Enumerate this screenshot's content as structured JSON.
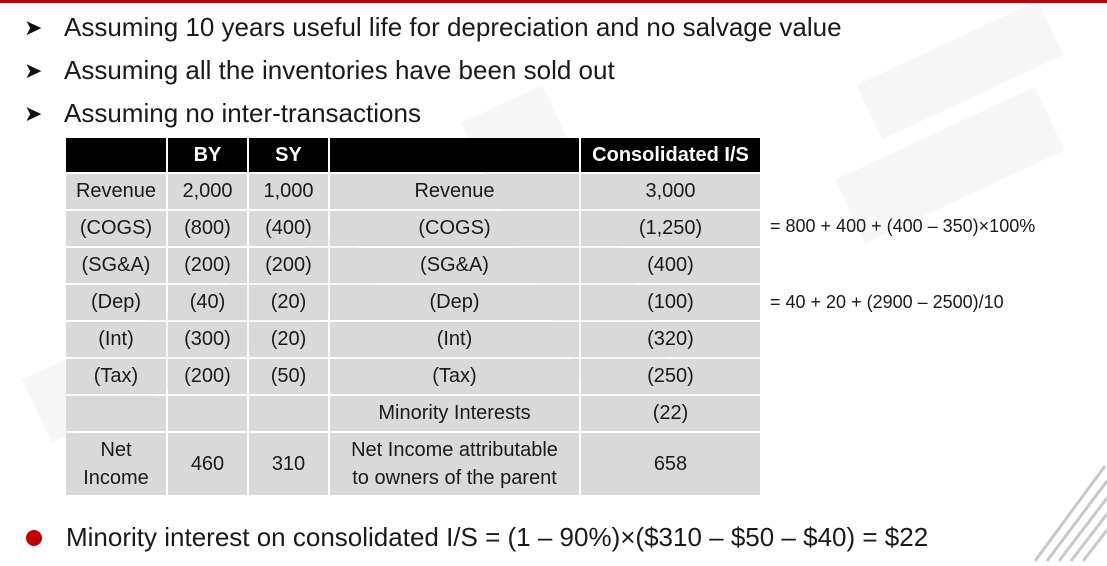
{
  "colors": {
    "accent": "#c00000",
    "header_bg": "#000000",
    "cell_bg": "#d9d9d9"
  },
  "bullets": [
    {
      "icon": "arrow-bullet-icon",
      "text": "Assuming 10 years useful life for depreciation and no salvage value"
    },
    {
      "icon": "arrow-bullet-icon",
      "text": "Assuming all the inventories have been sold out"
    },
    {
      "icon": "arrow-bullet-icon",
      "text": "Assuming no inter-transactions"
    }
  ],
  "table": {
    "headers": [
      "",
      "BY",
      "SY",
      "",
      "Consolidated I/S"
    ],
    "rows": [
      [
        "Revenue",
        "2,000",
        "1,000",
        "Revenue",
        "3,000"
      ],
      [
        "(COGS)",
        "(800)",
        "(400)",
        "(COGS)",
        "(1,250)"
      ],
      [
        "(SG&A)",
        "(200)",
        "(200)",
        "(SG&A)",
        "(400)"
      ],
      [
        "(Dep)",
        "(40)",
        "(20)",
        "(Dep)",
        "(100)"
      ],
      [
        "(Int)",
        "(300)",
        "(20)",
        "(Int)",
        "(320)"
      ],
      [
        "(Tax)",
        "(200)",
        "(50)",
        "(Tax)",
        "(250)"
      ],
      [
        "",
        "",
        "",
        "Minority Interests",
        "(22)"
      ]
    ],
    "net_row": {
      "label_line1": "Net",
      "label_line2": "Income",
      "by": "460",
      "sy": "310",
      "desc_line1": "Net Income attributable",
      "desc_line2": "to owners of the parent",
      "consolidated": "658"
    }
  },
  "notes": {
    "cogs": "= 800 + 400 + (400 – 350)×100%",
    "dep": "= 40 + 20 + (2900 – 2500)/10"
  },
  "summary": {
    "icon": "red-dot-bullet-icon",
    "text": "Minority interest on consolidated I/S = (1 – 90%)×($310 – $50 – $40) = $22"
  }
}
